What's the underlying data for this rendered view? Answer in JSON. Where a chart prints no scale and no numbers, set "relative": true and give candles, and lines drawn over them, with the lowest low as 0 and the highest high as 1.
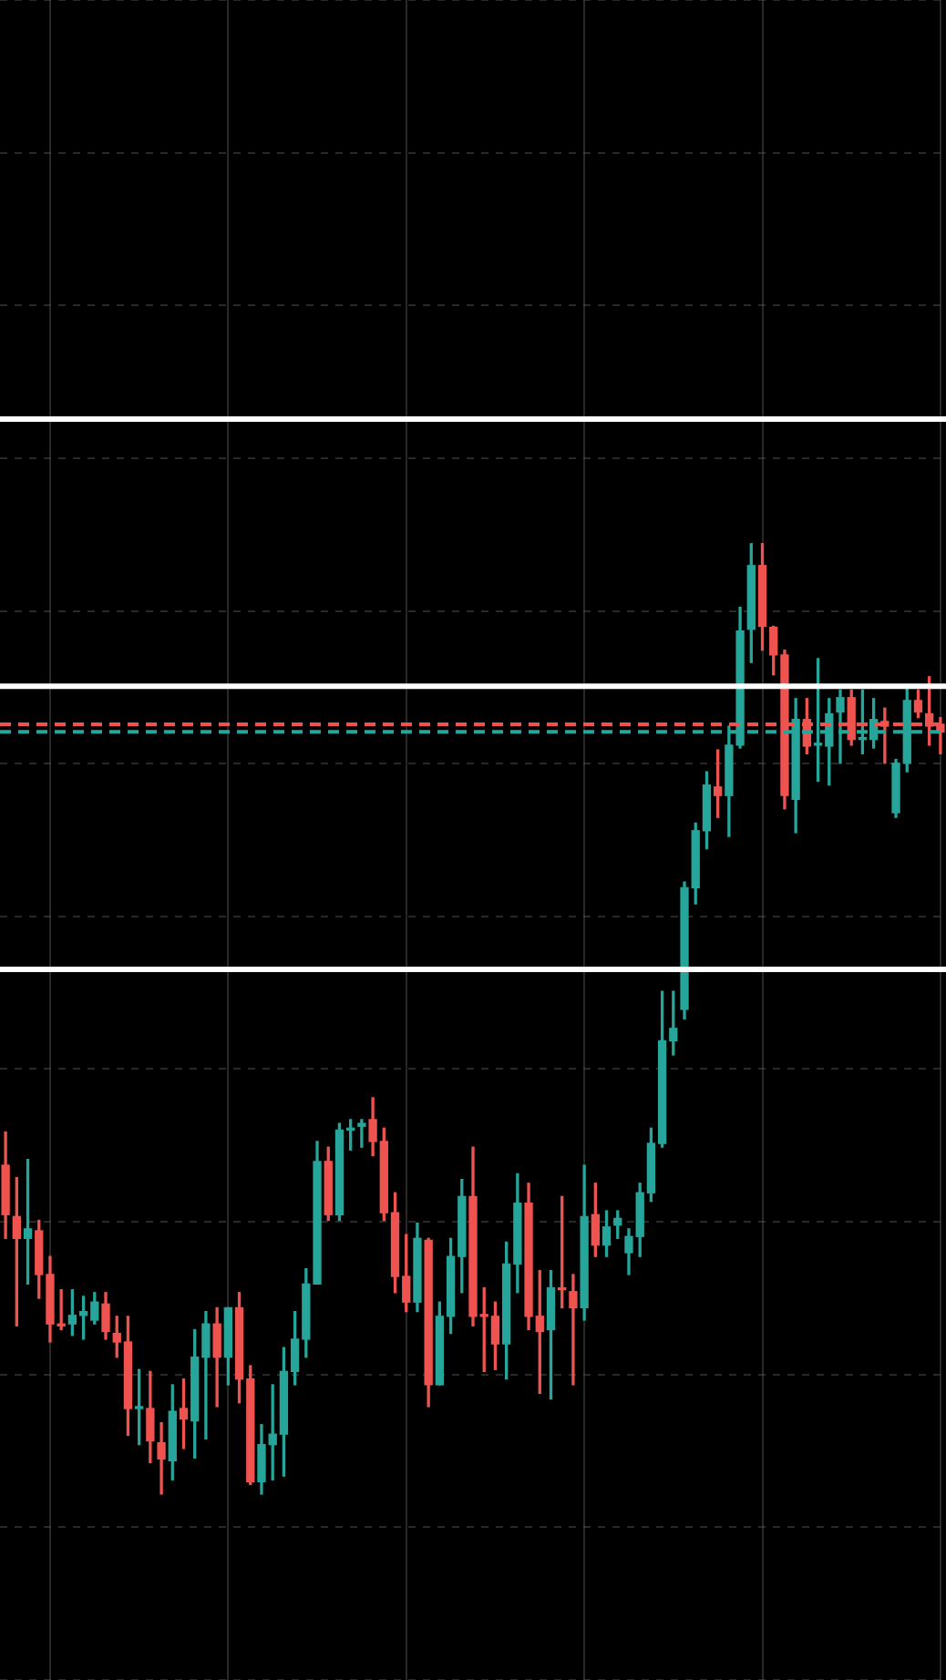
{
  "chart_data": {
    "type": "candlestick",
    "relative": true,
    "tick_labels": false,
    "grid": true,
    "legend": false,
    "categories": [
      null,
      null,
      null,
      null,
      null,
      null,
      null,
      null,
      null,
      null,
      null,
      null,
      null,
      null,
      null,
      null,
      null,
      null,
      null,
      null,
      null,
      null,
      null,
      null,
      null,
      null,
      null,
      null,
      null,
      null,
      null,
      null,
      null,
      null,
      null,
      null,
      null,
      null,
      null,
      null,
      null,
      null,
      null,
      null,
      null,
      null,
      null,
      null,
      null,
      null,
      null,
      null,
      null,
      null,
      null,
      null,
      null,
      null,
      null,
      null,
      null,
      null,
      null,
      null,
      null,
      null,
      null,
      null,
      null,
      null,
      null,
      null,
      null,
      null,
      null,
      null,
      null,
      null,
      null,
      null,
      null,
      null,
      null,
      null,
      null
    ],
    "ohlc": [
      [
        0.346,
        0.381,
        0.269,
        0.294
      ],
      [
        0.292,
        0.333,
        0.177,
        0.269
      ],
      [
        0.269,
        0.352,
        0.221,
        0.279
      ],
      [
        0.277,
        0.288,
        0.206,
        0.231
      ],
      [
        0.231,
        0.25,
        0.16,
        0.179
      ],
      [
        0.179,
        0.215,
        0.173,
        0.177
      ],
      [
        0.179,
        0.215,
        0.167,
        0.188
      ],
      [
        0.188,
        0.208,
        0.163,
        0.192
      ],
      [
        0.183,
        0.212,
        0.179,
        0.202
      ],
      [
        0.2,
        0.212,
        0.163,
        0.171
      ],
      [
        0.169,
        0.187,
        0.144,
        0.16
      ],
      [
        0.16,
        0.187,
        0.062,
        0.09
      ],
      [
        0.09,
        0.131,
        0.052,
        0.092
      ],
      [
        0.09,
        0.129,
        0.033,
        0.056
      ],
      [
        0.054,
        0.075,
        0,
        0.037
      ],
      [
        0.035,
        0.115,
        0.015,
        0.087
      ],
      [
        0.09,
        0.121,
        0.048,
        0.079
      ],
      [
        0.077,
        0.173,
        0.038,
        0.144
      ],
      [
        0.144,
        0.192,
        0.058,
        0.179
      ],
      [
        0.179,
        0.196,
        0.092,
        0.144
      ],
      [
        0.144,
        0.196,
        0.115,
        0.196
      ],
      [
        0.196,
        0.212,
        0.096,
        0.121
      ],
      [
        0.121,
        0.135,
        0.01,
        0.013
      ],
      [
        0.013,
        0.073,
        0,
        0.052
      ],
      [
        0.052,
        0.115,
        0.015,
        0.063
      ],
      [
        0.063,
        0.154,
        0.019,
        0.129
      ],
      [
        0.129,
        0.192,
        0.115,
        0.163
      ],
      [
        0.163,
        0.237,
        0.144,
        0.221
      ],
      [
        0.221,
        0.371,
        0.221,
        0.35
      ],
      [
        0.35,
        0.365,
        0.288,
        0.294
      ],
      [
        0.294,
        0.39,
        0.288,
        0.383
      ],
      [
        0.383,
        0.394,
        0.362,
        0.385
      ],
      [
        0.387,
        0.394,
        0.365,
        0.39
      ],
      [
        0.394,
        0.417,
        0.356,
        0.371
      ],
      [
        0.371,
        0.385,
        0.288,
        0.296
      ],
      [
        0.296,
        0.317,
        0.212,
        0.229
      ],
      [
        0.229,
        0.273,
        0.192,
        0.202
      ],
      [
        0.202,
        0.285,
        0.192,
        0.269
      ],
      [
        0.267,
        0.269,
        0.092,
        0.115
      ],
      [
        0.115,
        0.202,
        0.115,
        0.187
      ],
      [
        0.187,
        0.269,
        0.169,
        0.25
      ],
      [
        0.25,
        0.331,
        0.212,
        0.313
      ],
      [
        0.313,
        0.365,
        0.177,
        0.187
      ],
      [
        0.188,
        0.217,
        0.129,
        0.187
      ],
      [
        0.187,
        0.202,
        0.131,
        0.158
      ],
      [
        0.158,
        0.265,
        0.121,
        0.242
      ],
      [
        0.242,
        0.337,
        0.212,
        0.306
      ],
      [
        0.306,
        0.327,
        0.173,
        0.187
      ],
      [
        0.187,
        0.235,
        0.106,
        0.171
      ],
      [
        0.173,
        0.235,
        0.1,
        0.217
      ],
      [
        0.217,
        0.313,
        0.196,
        0.215
      ],
      [
        0.213,
        0.231,
        0.115,
        0.196
      ],
      [
        0.196,
        0.346,
        0.183,
        0.292
      ],
      [
        0.294,
        0.327,
        0.25,
        0.262
      ],
      [
        0.262,
        0.298,
        0.25,
        0.281
      ],
      [
        0.283,
        0.298,
        0.269,
        0.29
      ],
      [
        0.254,
        0.279,
        0.231,
        0.271
      ],
      [
        0.271,
        0.327,
        0.25,
        0.317
      ],
      [
        0.317,
        0.385,
        0.308,
        0.369
      ],
      [
        0.369,
        0.529,
        0.365,
        0.477
      ],
      [
        0.477,
        0.529,
        0.462,
        0.49
      ],
      [
        0.51,
        0.644,
        0.5,
        0.638
      ],
      [
        0.638,
        0.706,
        0.621,
        0.698
      ],
      [
        0.698,
        0.76,
        0.679,
        0.746
      ],
      [
        0.744,
        0.783,
        0.712,
        0.735
      ],
      [
        0.735,
        0.808,
        0.692,
        0.788
      ],
      [
        0.788,
        0.933,
        0.785,
        0.908
      ],
      [
        0.91,
        1,
        0.875,
        0.977
      ],
      [
        0.977,
        1,
        0.888,
        0.913
      ],
      [
        0.912,
        0.913,
        0.862,
        0.883
      ],
      [
        0.883,
        0.888,
        0.721,
        0.735
      ],
      [
        0.731,
        0.837,
        0.696,
        0.815
      ],
      [
        0.815,
        0.837,
        0.779,
        0.787
      ],
      [
        0.788,
        0.879,
        0.75,
        0.79
      ],
      [
        0.787,
        0.837,
        0.746,
        0.821
      ],
      [
        0.823,
        0.846,
        0.769,
        0.838
      ],
      [
        0.838,
        0.846,
        0.788,
        0.794
      ],
      [
        0.794,
        0.846,
        0.779,
        0.796
      ],
      [
        0.794,
        0.837,
        0.785,
        0.815
      ],
      [
        0.813,
        0.827,
        0.769,
        0.808
      ],
      [
        0.717,
        0.773,
        0.712,
        0.769
      ],
      [
        0.769,
        0.85,
        0.76,
        0.835
      ],
      [
        0.835,
        0.846,
        0.817,
        0.823
      ],
      [
        0.821,
        0.86,
        0.788,
        0.808
      ],
      [
        0.81,
        0.817,
        0.779,
        0.802
      ]
    ],
    "colors": [
      "#ef5350",
      "#ef5350",
      "#26a69a",
      "#ef5350",
      "#ef5350",
      "#ef5350",
      "#26a69a",
      "#26a69a",
      "#26a69a",
      "#ef5350",
      "#ef5350",
      "#ef5350",
      "#26a69a",
      "#ef5350",
      "#ef5350",
      "#26a69a",
      "#ef5350",
      "#26a69a",
      "#26a69a",
      "#ef5350",
      "#26a69a",
      "#ef5350",
      "#ef5350",
      "#26a69a",
      "#26a69a",
      "#26a69a",
      "#26a69a",
      "#26a69a",
      "#26a69a",
      "#ef5350",
      "#26a69a",
      "#26a69a",
      "#26a69a",
      "#ef5350",
      "#ef5350",
      "#ef5350",
      "#ef5350",
      "#26a69a",
      "#ef5350",
      "#26a69a",
      "#26a69a",
      "#26a69a",
      "#ef5350",
      "#ef5350",
      "#ef5350",
      "#26a69a",
      "#26a69a",
      "#ef5350",
      "#ef5350",
      "#26a69a",
      "#ef5350",
      "#ef5350",
      "#26a69a",
      "#ef5350",
      "#26a69a",
      "#26a69a",
      "#26a69a",
      "#26a69a",
      "#26a69a",
      "#26a69a",
      "#26a69a",
      "#26a69a",
      "#26a69a",
      "#26a69a",
      "#ef5350",
      "#26a69a",
      "#26a69a",
      "#26a69a",
      "#ef5350",
      "#ef5350",
      "#ef5350",
      "#26a69a",
      "#ef5350",
      "#26a69a",
      "#26a69a",
      "#26a69a",
      "#ef5350",
      "#26a69a",
      "#26a69a",
      "#ef5350",
      "#26a69a",
      "#26a69a",
      "#ef5350",
      "#ef5350",
      "#ef5350"
    ],
    "ref_lines": [
      {
        "axis": "y",
        "value": 1.131,
        "color": "#ffffff"
      },
      {
        "axis": "y",
        "value": 0.85,
        "color": "#ffffff"
      },
      {
        "axis": "y",
        "value": 0.552,
        "color": "#ffffff"
      },
      {
        "axis": "y",
        "value": 0.81,
        "color": "#ef5350",
        "line_style": "dashed"
      },
      {
        "axis": "y",
        "value": 0.802,
        "color": "#26a69a",
        "line_style": "dashed"
      }
    ]
  }
}
